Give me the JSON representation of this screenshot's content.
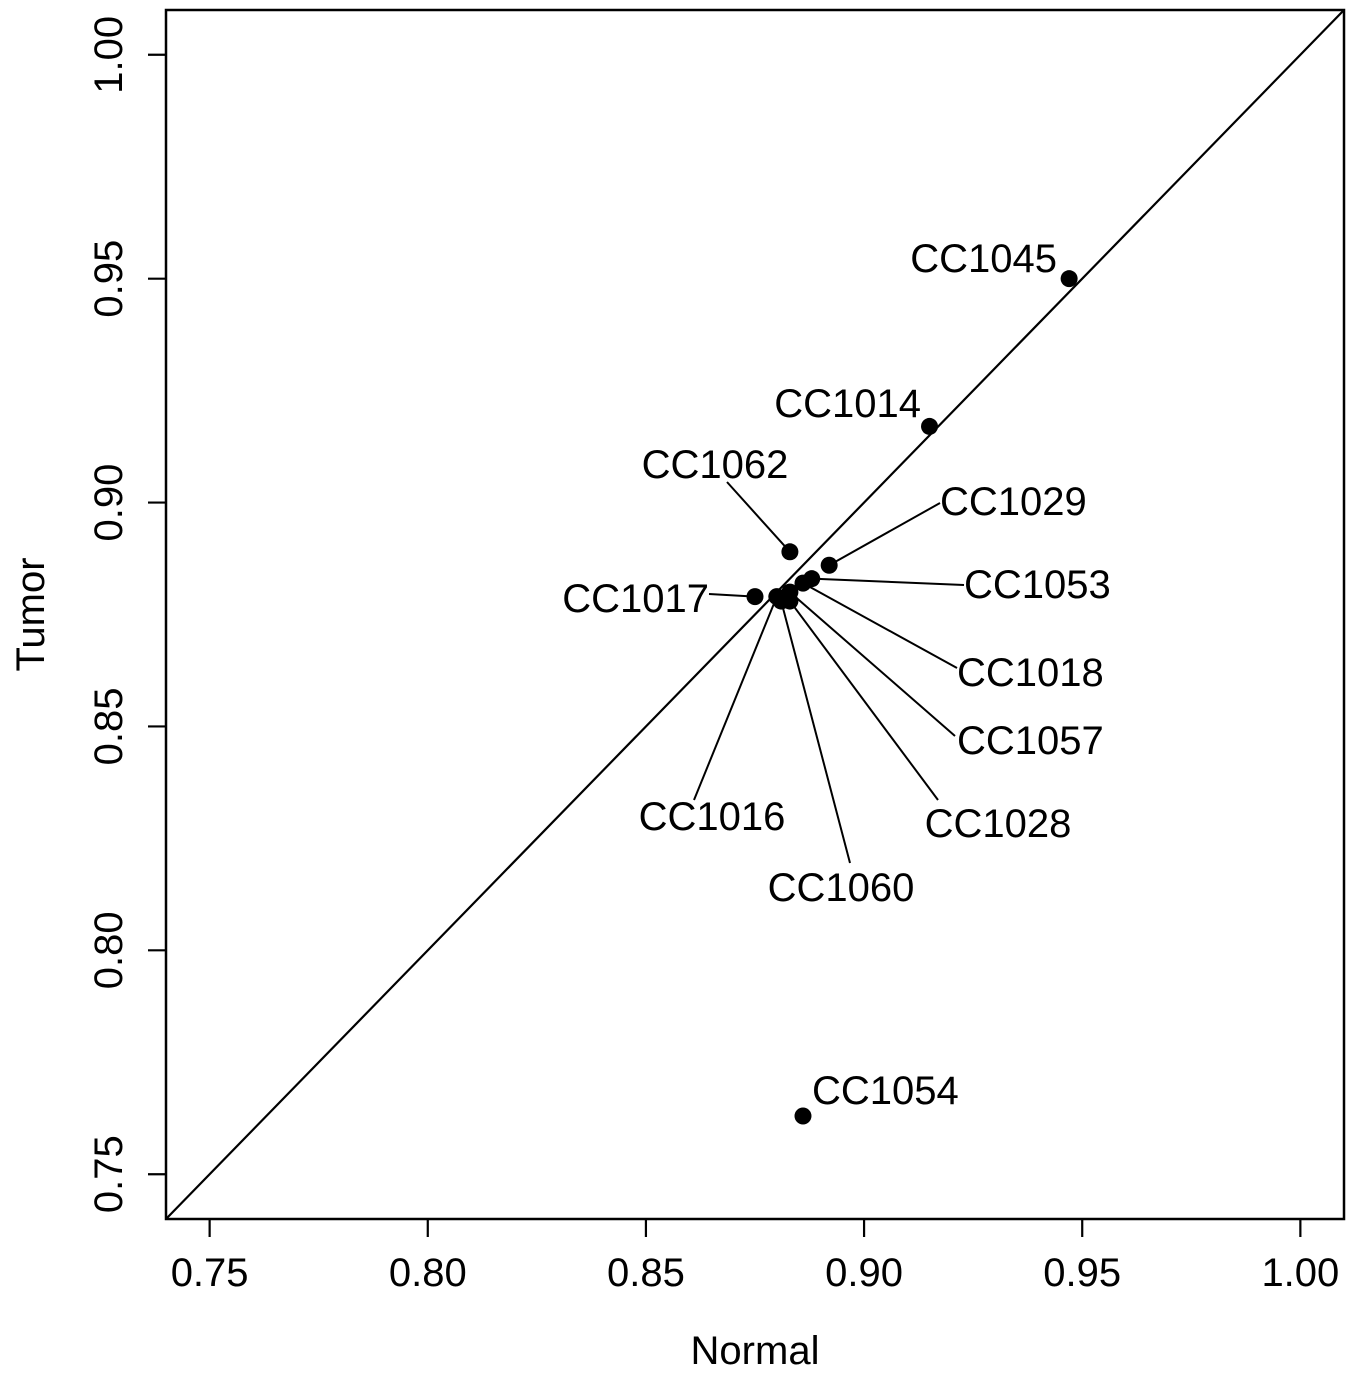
{
  "chart_data": {
    "type": "scatter",
    "xlabel": "Normal",
    "ylabel": "Tumor",
    "xlim": [
      0.74,
      1.01
    ],
    "ylim": [
      0.74,
      1.01
    ],
    "xticks": [
      "0.75",
      "0.80",
      "0.85",
      "0.90",
      "0.95",
      "1.00"
    ],
    "yticks": [
      "0.75",
      "0.80",
      "0.85",
      "0.90",
      "0.95",
      "1.00"
    ],
    "reference_line": "y = x",
    "grid": false,
    "legend": "none",
    "marker_color": "#000000",
    "points": [
      {
        "label": "CC1045",
        "x": 0.947,
        "y": 0.95
      },
      {
        "label": "CC1014",
        "x": 0.915,
        "y": 0.917
      },
      {
        "label": "CC1062",
        "x": 0.883,
        "y": 0.889
      },
      {
        "label": "CC1029",
        "x": 0.892,
        "y": 0.886
      },
      {
        "label": "CC1053",
        "x": 0.888,
        "y": 0.883
      },
      {
        "label": "CC1018",
        "x": 0.886,
        "y": 0.882
      },
      {
        "label": "CC1017",
        "x": 0.875,
        "y": 0.879
      },
      {
        "label": "CC1057",
        "x": 0.883,
        "y": 0.88
      },
      {
        "label": "CC1028",
        "x": 0.883,
        "y": 0.878
      },
      {
        "label": "CC1016",
        "x": 0.88,
        "y": 0.879
      },
      {
        "label": "CC1060",
        "x": 0.881,
        "y": 0.878
      },
      {
        "label": "CC1054",
        "x": 0.886,
        "y": 0.763
      }
    ]
  }
}
